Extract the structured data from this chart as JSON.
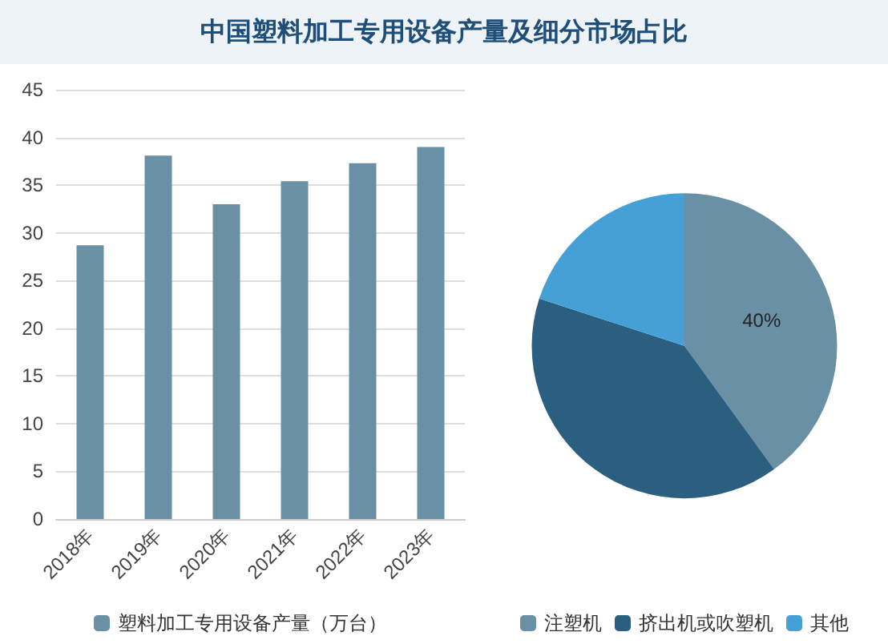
{
  "chart_data": [
    {
      "type": "bar",
      "title": "中国塑料加工专用设备产量及细分市场占比",
      "categories": [
        "2018年",
        "2019年",
        "2020年",
        "2021年",
        "2022年",
        "2023年"
      ],
      "series": [
        {
          "name": "塑料加工专用设备产量（万台）",
          "color": "#6a90a5",
          "values": [
            28.7,
            38.1,
            33.0,
            35.4,
            37.3,
            39.0
          ]
        }
      ],
      "ylim": [
        0,
        45
      ],
      "yticks": [
        0,
        5,
        10,
        15,
        20,
        25,
        30,
        35,
        40,
        45
      ],
      "grid": "y",
      "legend": "bottom"
    },
    {
      "type": "pie",
      "categories": [
        "注塑机",
        "挤出机或吹塑机",
        "其他"
      ],
      "values": [
        40,
        40,
        20
      ],
      "colors": [
        "#6a90a5",
        "#2a5f80",
        "#45a0d6"
      ],
      "value_labels": [
        "40%",
        null,
        null
      ],
      "legend": "bottom"
    }
  ]
}
